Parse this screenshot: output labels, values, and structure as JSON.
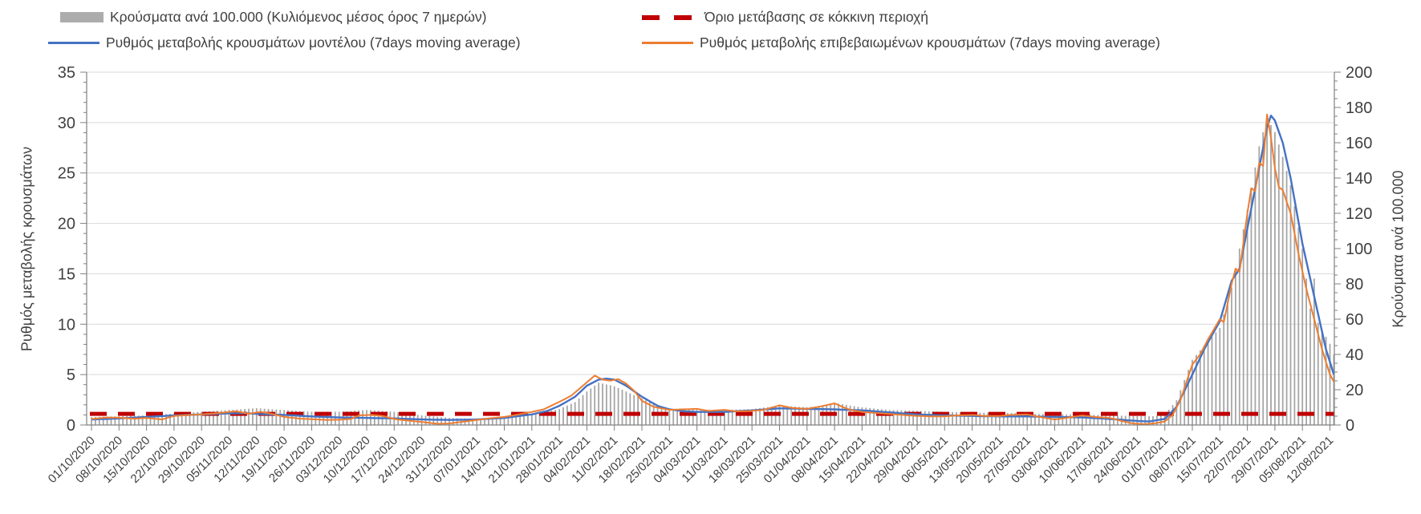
{
  "legend": {
    "bars_label": "Κρούσματα ανά 100.000 (Κυλιόμενος μέσος όρος 7 ημερών)",
    "threshold_label": "Όριο μετάβασης σε κόκκινη περιοχή",
    "model_label": "Ρυθμός μεταβολής κρουσμάτων μοντέλου (7days moving average)",
    "confirmed_label": "Ρυθμός μεταβολής επιβεβαιωμένων κρουσμάτων (7days moving average)"
  },
  "colors": {
    "bars": "#A6A6A6",
    "legend_bar_swatch": "#ACACAC",
    "model_line": "#4472C4",
    "confirmed_line": "#ED7D31",
    "threshold": "#C00000",
    "gridline": "#D9D9D9",
    "axis": "#808080",
    "text": "#404040"
  },
  "chart_data": {
    "type": "combo",
    "grid": "horizontal",
    "legend_position": "top",
    "y_left": {
      "title": "Ρυθμός μεταβολής κρουσμάτων",
      "min": 0,
      "max": 35,
      "step": 5,
      "minor_step": 1,
      "ticks": [
        "0",
        "5",
        "10",
        "15",
        "20",
        "25",
        "30",
        "35"
      ]
    },
    "y_right": {
      "title": "Κρούσματα ανά 100.000",
      "min": 0,
      "max": 200,
      "step": 20,
      "minor_step": 5,
      "ticks": [
        "0",
        "20",
        "40",
        "60",
        "80",
        "100",
        "120",
        "140",
        "160",
        "180",
        "200"
      ]
    },
    "x": {
      "start_date": "01/10/2020",
      "end_date": "13/08/2021",
      "unit": "day",
      "tick_labels": [
        "01/10/2020",
        "08/10/2020",
        "15/10/2020",
        "22/10/2020",
        "29/10/2020",
        "05/11/2020",
        "12/11/2020",
        "19/11/2020",
        "26/11/2020",
        "03/12/2020",
        "10/12/2020",
        "17/12/2020",
        "24/12/2020",
        "31/12/2020",
        "07/01/2021",
        "14/01/2021",
        "21/01/2021",
        "28/01/2021",
        "04/02/2021",
        "11/02/2021",
        "18/02/2021",
        "25/02/2021",
        "04/03/2021",
        "11/03/2021",
        "18/03/2021",
        "25/03/2021",
        "01/04/2021",
        "08/04/2021",
        "15/04/2021",
        "22/04/2021",
        "29/04/2021",
        "06/05/2021",
        "13/05/2021",
        "20/05/2021",
        "27/05/2021",
        "03/06/2021",
        "10/06/2021",
        "17/06/2021",
        "24/06/2021",
        "01/07/2021",
        "08/07/2021",
        "15/07/2021",
        "22/07/2021",
        "29/07/2021",
        "05/08/2021",
        "12/08/2021"
      ]
    },
    "series": [
      {
        "name": "Κρούσματα ανά 100.000 (Κυλιόμενος μέσος όρος 7 ημερών)",
        "type": "bar",
        "axis": "right",
        "color": "#A6A6A6",
        "points": [
          [
            "01/10/2020",
            4.5
          ],
          [
            "08/10/2020",
            5
          ],
          [
            "15/10/2020",
            5.5
          ],
          [
            "22/10/2020",
            6.5
          ],
          [
            "29/10/2020",
            7.5
          ],
          [
            "05/11/2020",
            8.5
          ],
          [
            "12/11/2020",
            9.5
          ],
          [
            "19/11/2020",
            8.5
          ],
          [
            "26/11/2020",
            7.5
          ],
          [
            "03/12/2020",
            7.5
          ],
          [
            "10/12/2020",
            8.5
          ],
          [
            "17/12/2020",
            7.5
          ],
          [
            "24/12/2020",
            5.5
          ],
          [
            "31/12/2020",
            4
          ],
          [
            "07/01/2021",
            3.5
          ],
          [
            "14/01/2021",
            4.5
          ],
          [
            "21/01/2021",
            6
          ],
          [
            "28/01/2021",
            9
          ],
          [
            "01/02/2021",
            13
          ],
          [
            "04/02/2021",
            19
          ],
          [
            "07/02/2021",
            24
          ],
          [
            "11/02/2021",
            22
          ],
          [
            "14/02/2021",
            19
          ],
          [
            "18/02/2021",
            15
          ],
          [
            "22/02/2021",
            11
          ],
          [
            "25/02/2021",
            9
          ],
          [
            "04/03/2021",
            8.5
          ],
          [
            "11/03/2021",
            8.5
          ],
          [
            "18/03/2021",
            9
          ],
          [
            "25/03/2021",
            11
          ],
          [
            "01/04/2021",
            10
          ],
          [
            "05/04/2021",
            11
          ],
          [
            "08/04/2021",
            12.5
          ],
          [
            "12/04/2021",
            11
          ],
          [
            "15/04/2021",
            10
          ],
          [
            "22/04/2021",
            8.5
          ],
          [
            "29/04/2021",
            8
          ],
          [
            "06/05/2021",
            7.5
          ],
          [
            "13/05/2021",
            7
          ],
          [
            "20/05/2021",
            7
          ],
          [
            "27/05/2021",
            6.5
          ],
          [
            "03/06/2021",
            6
          ],
          [
            "10/06/2021",
            6
          ],
          [
            "17/06/2021",
            5.5
          ],
          [
            "24/06/2021",
            5
          ],
          [
            "28/06/2021",
            5
          ],
          [
            "01/07/2021",
            6
          ],
          [
            "04/07/2021",
            14
          ],
          [
            "08/07/2021",
            37
          ],
          [
            "11/07/2021",
            45
          ],
          [
            "15/07/2021",
            55
          ],
          [
            "18/07/2021",
            78
          ],
          [
            "22/07/2021",
            122
          ],
          [
            "25/07/2021",
            158
          ],
          [
            "27/07/2021",
            174
          ],
          [
            "29/07/2021",
            166
          ],
          [
            "31/07/2021",
            152
          ],
          [
            "02/08/2021",
            136
          ],
          [
            "05/08/2021",
            100
          ],
          [
            "07/08/2021",
            66
          ],
          [
            "08/08/2021",
            83
          ],
          [
            "09/08/2021",
            58
          ],
          [
            "12/08/2021",
            46
          ],
          [
            "13/08/2021",
            40
          ]
        ]
      },
      {
        "name": "Ρυθμός μεταβολής κρουσμάτων μοντέλου (7days moving average)",
        "type": "line",
        "axis": "left",
        "color": "#4472C4",
        "points": [
          [
            "01/10/2020",
            0.55
          ],
          [
            "08/10/2020",
            0.65
          ],
          [
            "15/10/2020",
            0.8
          ],
          [
            "22/10/2020",
            0.95
          ],
          [
            "29/10/2020",
            1.05
          ],
          [
            "05/11/2020",
            1.15
          ],
          [
            "09/11/2020",
            1.18
          ],
          [
            "12/11/2020",
            1.1
          ],
          [
            "19/11/2020",
            1.0
          ],
          [
            "26/11/2020",
            0.85
          ],
          [
            "03/12/2020",
            0.75
          ],
          [
            "10/12/2020",
            0.7
          ],
          [
            "17/12/2020",
            0.65
          ],
          [
            "24/12/2020",
            0.55
          ],
          [
            "31/12/2020",
            0.5
          ],
          [
            "07/01/2021",
            0.55
          ],
          [
            "14/01/2021",
            0.7
          ],
          [
            "21/01/2021",
            1.05
          ],
          [
            "25/01/2021",
            1.4
          ],
          [
            "28/01/2021",
            1.9
          ],
          [
            "01/02/2021",
            2.8
          ],
          [
            "04/02/2021",
            3.9
          ],
          [
            "07/02/2021",
            4.5
          ],
          [
            "09/02/2021",
            4.6
          ],
          [
            "11/02/2021",
            4.5
          ],
          [
            "14/02/2021",
            3.9
          ],
          [
            "18/02/2021",
            2.8
          ],
          [
            "22/02/2021",
            1.9
          ],
          [
            "25/02/2021",
            1.55
          ],
          [
            "01/03/2021",
            1.35
          ],
          [
            "04/03/2021",
            1.3
          ],
          [
            "11/03/2021",
            1.3
          ],
          [
            "18/03/2021",
            1.45
          ],
          [
            "25/03/2021",
            1.65
          ],
          [
            "01/04/2021",
            1.6
          ],
          [
            "08/04/2021",
            1.55
          ],
          [
            "15/04/2021",
            1.45
          ],
          [
            "22/04/2021",
            1.25
          ],
          [
            "29/04/2021",
            1.05
          ],
          [
            "06/05/2021",
            0.95
          ],
          [
            "13/05/2021",
            0.9
          ],
          [
            "20/05/2021",
            0.85
          ],
          [
            "27/05/2021",
            0.85
          ],
          [
            "03/06/2021",
            0.8
          ],
          [
            "10/06/2021",
            0.75
          ],
          [
            "17/06/2021",
            0.6
          ],
          [
            "24/06/2021",
            0.4
          ],
          [
            "27/06/2021",
            0.35
          ],
          [
            "01/07/2021",
            0.6
          ],
          [
            "04/07/2021",
            1.8
          ],
          [
            "08/07/2021",
            5.0
          ],
          [
            "11/07/2021",
            7.5
          ],
          [
            "15/07/2021",
            10.3
          ],
          [
            "18/07/2021",
            14.3
          ],
          [
            "20/07/2021",
            15.5
          ],
          [
            "22/07/2021",
            19.5
          ],
          [
            "25/07/2021",
            25.5
          ],
          [
            "27/07/2021",
            29.5
          ],
          [
            "28/07/2021",
            30.7
          ],
          [
            "29/07/2021",
            30.2
          ],
          [
            "31/07/2021",
            28
          ],
          [
            "02/08/2021",
            24.5
          ],
          [
            "05/08/2021",
            18
          ],
          [
            "07/08/2021",
            14.5
          ],
          [
            "09/08/2021",
            11
          ],
          [
            "11/08/2021",
            7.5
          ],
          [
            "13/08/2021",
            5.0
          ]
        ]
      },
      {
        "name": "Ρυθμός μεταβολής επιβεβαιωμένων κρουσμάτων (7days moving average)",
        "type": "line",
        "axis": "left",
        "color": "#ED7D31",
        "points": [
          [
            "01/10/2020",
            0.6
          ],
          [
            "05/10/2020",
            0.75
          ],
          [
            "08/10/2020",
            0.72
          ],
          [
            "12/10/2020",
            0.62
          ],
          [
            "15/10/2020",
            0.7
          ],
          [
            "19/10/2020",
            0.55
          ],
          [
            "22/10/2020",
            0.9
          ],
          [
            "26/10/2020",
            1.0
          ],
          [
            "29/10/2020",
            1.05
          ],
          [
            "02/11/2020",
            1.18
          ],
          [
            "05/11/2020",
            1.3
          ],
          [
            "07/11/2020",
            1.35
          ],
          [
            "10/11/2020",
            1.12
          ],
          [
            "13/11/2020",
            1.3
          ],
          [
            "16/11/2020",
            1.1
          ],
          [
            "19/11/2020",
            0.8
          ],
          [
            "23/11/2020",
            0.63
          ],
          [
            "26/11/2020",
            0.58
          ],
          [
            "30/11/2020",
            0.5
          ],
          [
            "03/12/2020",
            0.52
          ],
          [
            "06/12/2020",
            0.6
          ],
          [
            "08/12/2020",
            0.95
          ],
          [
            "11/12/2020",
            1.0
          ],
          [
            "14/12/2020",
            0.9
          ],
          [
            "17/12/2020",
            0.6
          ],
          [
            "20/12/2020",
            0.45
          ],
          [
            "24/12/2020",
            0.3
          ],
          [
            "28/12/2020",
            0.12
          ],
          [
            "31/12/2020",
            0.15
          ],
          [
            "03/01/2021",
            0.3
          ],
          [
            "07/01/2021",
            0.5
          ],
          [
            "10/01/2021",
            0.65
          ],
          [
            "14/01/2021",
            0.8
          ],
          [
            "17/01/2021",
            1.0
          ],
          [
            "21/01/2021",
            1.3
          ],
          [
            "24/01/2021",
            1.55
          ],
          [
            "28/01/2021",
            2.3
          ],
          [
            "31/01/2021",
            2.9
          ],
          [
            "03/02/2021",
            3.9
          ],
          [
            "06/02/2021",
            4.9
          ],
          [
            "08/02/2021",
            4.5
          ],
          [
            "10/02/2021",
            4.4
          ],
          [
            "12/02/2021",
            4.55
          ],
          [
            "14/02/2021",
            4.1
          ],
          [
            "16/02/2021",
            3.4
          ],
          [
            "18/02/2021",
            2.4
          ],
          [
            "21/02/2021",
            1.8
          ],
          [
            "25/02/2021",
            1.5
          ],
          [
            "28/02/2021",
            1.55
          ],
          [
            "04/03/2021",
            1.6
          ],
          [
            "07/03/2021",
            1.4
          ],
          [
            "11/03/2021",
            1.5
          ],
          [
            "14/03/2021",
            1.35
          ],
          [
            "18/03/2021",
            1.4
          ],
          [
            "21/03/2021",
            1.5
          ],
          [
            "25/03/2021",
            1.95
          ],
          [
            "28/03/2021",
            1.7
          ],
          [
            "01/04/2021",
            1.6
          ],
          [
            "04/04/2021",
            1.8
          ],
          [
            "08/04/2021",
            2.15
          ],
          [
            "10/04/2021",
            1.8
          ],
          [
            "12/04/2021",
            1.5
          ],
          [
            "15/04/2021",
            1.3
          ],
          [
            "18/04/2021",
            1.2
          ],
          [
            "22/04/2021",
            1.1
          ],
          [
            "25/04/2021",
            1.0
          ],
          [
            "29/04/2021",
            0.9
          ],
          [
            "03/05/2021",
            0.85
          ],
          [
            "06/05/2021",
            0.85
          ],
          [
            "09/05/2021",
            0.95
          ],
          [
            "13/05/2021",
            1.0
          ],
          [
            "16/05/2021",
            0.9
          ],
          [
            "20/05/2021",
            0.9
          ],
          [
            "23/05/2021",
            1.0
          ],
          [
            "27/05/2021",
            1.05
          ],
          [
            "30/05/2021",
            0.8
          ],
          [
            "03/06/2021",
            0.55
          ],
          [
            "06/06/2021",
            0.7
          ],
          [
            "10/06/2021",
            0.95
          ],
          [
            "13/06/2021",
            0.8
          ],
          [
            "17/06/2021",
            0.7
          ],
          [
            "20/06/2021",
            0.4
          ],
          [
            "23/06/2021",
            0.15
          ],
          [
            "26/06/2021",
            0.08
          ],
          [
            "29/06/2021",
            0.2
          ],
          [
            "01/07/2021",
            0.35
          ],
          [
            "03/07/2021",
            1.0
          ],
          [
            "05/07/2021",
            2.5
          ],
          [
            "08/07/2021",
            6.0
          ],
          [
            "10/07/2021",
            7.0
          ],
          [
            "12/07/2021",
            8.5
          ],
          [
            "15/07/2021",
            10.5
          ],
          [
            "16/07/2021",
            10.2
          ],
          [
            "18/07/2021",
            14.0
          ],
          [
            "19/07/2021",
            15.5
          ],
          [
            "20/07/2021",
            15.2
          ],
          [
            "22/07/2021",
            21.0
          ],
          [
            "23/07/2021",
            23.5
          ],
          [
            "24/07/2021",
            23.2
          ],
          [
            "25/07/2021",
            26.0
          ],
          [
            "26/07/2021",
            25.7
          ],
          [
            "27/07/2021",
            30.8
          ],
          [
            "28/07/2021",
            28.5
          ],
          [
            "29/07/2021",
            25.5
          ],
          [
            "30/07/2021",
            23.6
          ],
          [
            "31/07/2021",
            23.3
          ],
          [
            "02/08/2021",
            21
          ],
          [
            "04/08/2021",
            17
          ],
          [
            "06/08/2021",
            13.5
          ],
          [
            "08/08/2021",
            10.5
          ],
          [
            "10/08/2021",
            7.5
          ],
          [
            "12/08/2021",
            5.0
          ],
          [
            "13/08/2021",
            4.3
          ]
        ]
      },
      {
        "name": "Όριο μετάβασης σε κόκκινη περιοχή",
        "type": "threshold_line",
        "axis": "left",
        "color": "#C00000",
        "style": "dashed",
        "value": 1.1
      }
    ]
  }
}
